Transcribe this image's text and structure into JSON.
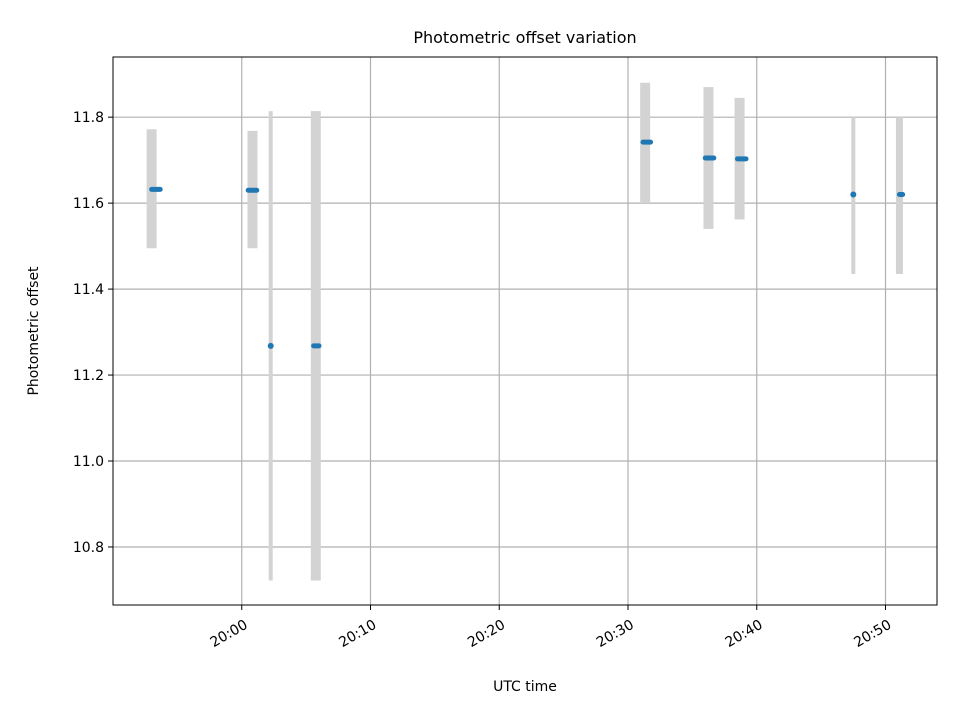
{
  "chart_data": {
    "type": "scatter",
    "title": "Photometric offset variation",
    "xlabel": "UTC time",
    "ylabel": "Photometric offset",
    "xlim": [
      "19:50:00",
      "20:54:00"
    ],
    "ylim": [
      10.665,
      11.94
    ],
    "x_ticks": [
      "20:00",
      "20:10",
      "20:20",
      "20:30",
      "20:40",
      "20:50"
    ],
    "y_ticks": [
      10.8,
      11.0,
      11.2,
      11.4,
      11.6,
      11.8
    ],
    "grid": true,
    "error_bar_color": "#d3d3d3",
    "marker_color": "#1f77b4",
    "groups": [
      {
        "x_start": "19:53:00",
        "x_end": "19:53:40",
        "y": 11.632,
        "y_low": 11.495,
        "y_high": 11.772,
        "bar_x": "19:53:00",
        "bar_width": "thick"
      },
      {
        "x_start": "20:00:30",
        "x_end": "20:01:10",
        "y": 11.63,
        "y_low": 11.495,
        "y_high": 11.768,
        "bar_x": "20:00:50",
        "bar_width": "thick"
      },
      {
        "x_start": "20:02:15",
        "x_end": "20:02:15",
        "y": 11.268,
        "y_low": 10.722,
        "y_high": 11.814,
        "bar_x": "20:02:15",
        "bar_width": "thin"
      },
      {
        "x_start": "20:05:35",
        "x_end": "20:06:00",
        "y": 11.268,
        "y_low": 10.722,
        "y_high": 11.814,
        "bar_x": "20:05:45",
        "bar_width": "thick"
      },
      {
        "x_start": "20:31:10",
        "x_end": "20:31:45",
        "y": 11.742,
        "y_low": 11.6,
        "y_high": 11.88,
        "bar_x": "20:31:20",
        "bar_width": "thick"
      },
      {
        "x_start": "20:36:00",
        "x_end": "20:36:40",
        "y": 11.705,
        "y_low": 11.54,
        "y_high": 11.87,
        "bar_x": "20:36:15",
        "bar_width": "thick"
      },
      {
        "x_start": "20:38:30",
        "x_end": "20:39:10",
        "y": 11.703,
        "y_low": 11.562,
        "y_high": 11.845,
        "bar_x": "20:38:40",
        "bar_width": "thick"
      },
      {
        "x_start": "20:47:30",
        "x_end": "20:47:30",
        "y": 11.62,
        "y_low": 11.435,
        "y_high": 11.8,
        "bar_x": "20:47:30",
        "bar_width": "thin"
      },
      {
        "x_start": "20:51:05",
        "x_end": "20:51:20",
        "y": 11.62,
        "y_low": 11.435,
        "y_high": 11.8,
        "bar_x": "20:51:05",
        "bar_width": "medium"
      }
    ]
  }
}
